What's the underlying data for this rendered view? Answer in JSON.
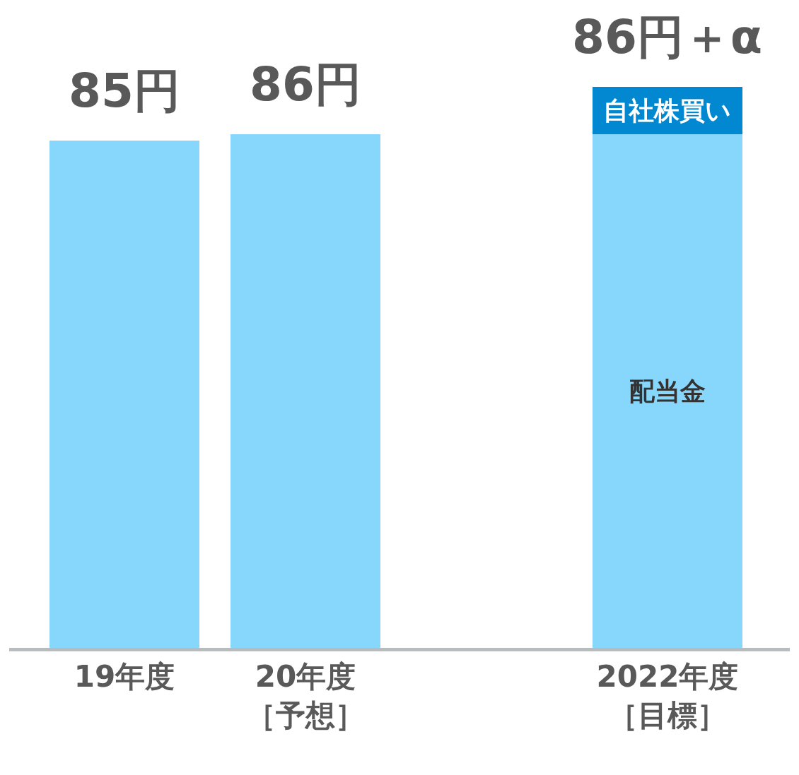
{
  "chart_data": {
    "type": "bar",
    "stacked": true,
    "categories": [
      "19年度",
      "20年度［予想］",
      null,
      "2022年度［目標］"
    ],
    "series": [
      {
        "name": "配当金",
        "color": "#87d7fd",
        "values": [
          85,
          86,
          null,
          86
        ],
        "value_labels": [
          "85円",
          "86円",
          null,
          "86円＋α"
        ]
      },
      {
        "name": "自社株買い",
        "color": "#0288d1",
        "values": [
          null,
          null,
          null,
          8
        ]
      }
    ],
    "legend": false,
    "grid": false,
    "tick_labels": "x"
  }
}
